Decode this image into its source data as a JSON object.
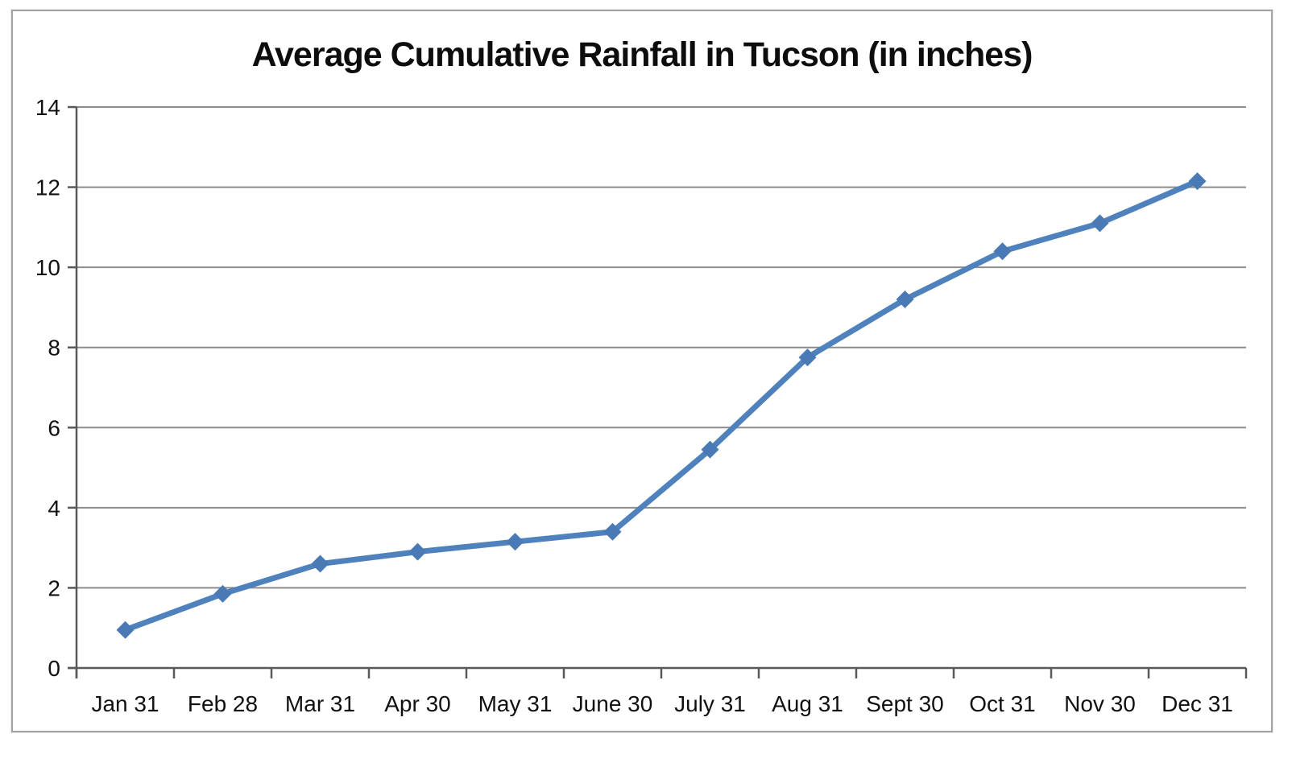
{
  "chart_data": {
    "type": "line",
    "title": "Average Cumulative Rainfall in Tucson (in inches)",
    "categories": [
      "Jan 31",
      "Feb 28",
      "Mar 31",
      "Apr 30",
      "May 31",
      "June 30",
      "July 31",
      "Aug 31",
      "Sept 30",
      "Oct 31",
      "Nov 30",
      "Dec 31"
    ],
    "series": [
      {
        "name": "Average Cumulative Rainfall",
        "values": [
          0.95,
          1.85,
          2.6,
          2.9,
          3.15,
          3.4,
          5.45,
          7.75,
          9.2,
          10.4,
          11.1,
          12.15
        ]
      }
    ],
    "xlabel": "",
    "ylabel": "",
    "ylim": [
      0,
      14
    ],
    "yticks": [
      0,
      2,
      4,
      6,
      8,
      10,
      12,
      14
    ],
    "grid": "horizontal",
    "legend_position": "none",
    "marker_shape": "diamond",
    "colors": {
      "line": "#4f81bd",
      "marker": "#4a7ab5",
      "gridline": "#8c8c8c",
      "axis": "#595959",
      "tick_text": "#111111",
      "title_text": "#0d0d0d",
      "frame_border": "#a3a3a3",
      "background": "#ffffff"
    }
  }
}
